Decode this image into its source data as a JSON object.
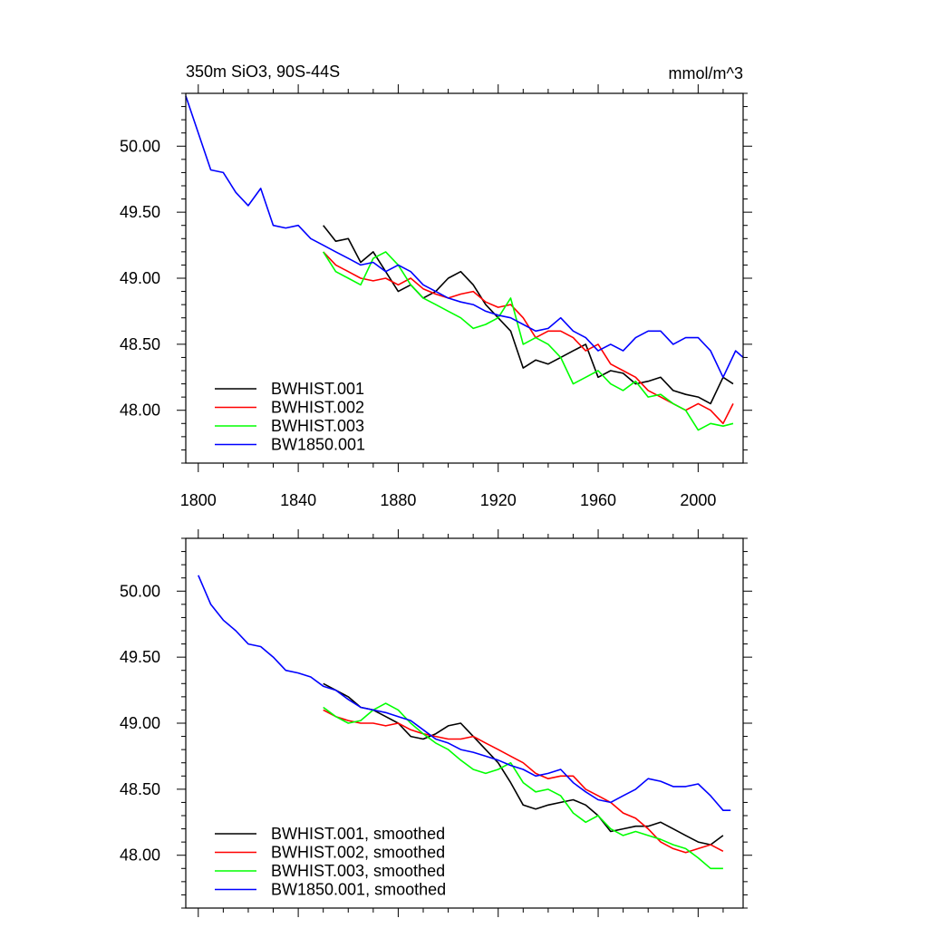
{
  "chart_data": [
    {
      "type": "line",
      "title": "350m SiO3, 90S-44S",
      "units": "mmol/m^3",
      "xlim": [
        1795,
        2018
      ],
      "ylim": [
        47.6,
        50.4
      ],
      "xticks": [
        1800,
        1840,
        1880,
        1920,
        1960,
        2000
      ],
      "yticks": [
        48.0,
        48.5,
        49.0,
        49.5,
        50.0
      ],
      "ytick_labels": [
        "48.00",
        "48.50",
        "49.00",
        "49.50",
        "50.00"
      ],
      "legend_position": "bottom-left",
      "series": [
        {
          "name": "BWHIST.001",
          "color": "#000000",
          "x": [
            1850,
            1855,
            1860,
            1865,
            1870,
            1875,
            1880,
            1885,
            1890,
            1895,
            1900,
            1905,
            1910,
            1915,
            1920,
            1925,
            1930,
            1935,
            1940,
            1945,
            1950,
            1955,
            1960,
            1965,
            1970,
            1975,
            1980,
            1985,
            1990,
            1995,
            2000,
            2005,
            2010,
            2014
          ],
          "y": [
            49.4,
            49.28,
            49.3,
            49.12,
            49.2,
            49.05,
            48.9,
            48.95,
            48.85,
            48.9,
            49.0,
            49.05,
            48.95,
            48.8,
            48.7,
            48.6,
            48.32,
            48.38,
            48.35,
            48.4,
            48.45,
            48.5,
            48.25,
            48.3,
            48.28,
            48.2,
            48.22,
            48.25,
            48.15,
            48.12,
            48.1,
            48.05,
            48.25,
            48.2
          ]
        },
        {
          "name": "BWHIST.002",
          "color": "#ff0000",
          "x": [
            1850,
            1855,
            1860,
            1865,
            1870,
            1875,
            1880,
            1885,
            1890,
            1895,
            1900,
            1905,
            1910,
            1915,
            1920,
            1925,
            1930,
            1935,
            1940,
            1945,
            1950,
            1955,
            1960,
            1965,
            1970,
            1975,
            1980,
            1985,
            1990,
            1995,
            2000,
            2005,
            2010,
            2014
          ],
          "y": [
            49.2,
            49.1,
            49.05,
            49.0,
            48.98,
            49.0,
            48.95,
            49.0,
            48.92,
            48.88,
            48.85,
            48.88,
            48.9,
            48.82,
            48.78,
            48.8,
            48.7,
            48.55,
            48.6,
            48.6,
            48.55,
            48.45,
            48.5,
            48.35,
            48.3,
            48.25,
            48.15,
            48.1,
            48.05,
            48.0,
            48.05,
            48.0,
            47.9,
            48.05
          ]
        },
        {
          "name": "BWHIST.003",
          "color": "#00ff00",
          "x": [
            1850,
            1855,
            1860,
            1865,
            1870,
            1875,
            1880,
            1885,
            1890,
            1895,
            1900,
            1905,
            1910,
            1915,
            1920,
            1925,
            1930,
            1935,
            1940,
            1945,
            1950,
            1955,
            1960,
            1965,
            1970,
            1975,
            1980,
            1985,
            1990,
            1995,
            2000,
            2005,
            2010,
            2014
          ],
          "y": [
            49.2,
            49.05,
            49.0,
            48.95,
            49.15,
            49.2,
            49.1,
            48.95,
            48.85,
            48.8,
            48.75,
            48.7,
            48.62,
            48.65,
            48.7,
            48.85,
            48.5,
            48.55,
            48.5,
            48.4,
            48.2,
            48.25,
            48.3,
            48.2,
            48.15,
            48.22,
            48.1,
            48.12,
            48.05,
            48.0,
            47.85,
            47.9,
            47.88,
            47.9
          ]
        },
        {
          "name": "BW1850.001",
          "color": "#0000ff",
          "x": [
            1795,
            1800,
            1805,
            1810,
            1815,
            1820,
            1825,
            1830,
            1835,
            1840,
            1845,
            1850,
            1855,
            1860,
            1865,
            1870,
            1875,
            1880,
            1885,
            1890,
            1895,
            1900,
            1905,
            1910,
            1915,
            1920,
            1925,
            1930,
            1935,
            1940,
            1945,
            1950,
            1955,
            1960,
            1965,
            1970,
            1975,
            1980,
            1985,
            1990,
            1995,
            2000,
            2005,
            2010,
            2015,
            2018
          ],
          "y": [
            50.38,
            50.1,
            49.82,
            49.8,
            49.65,
            49.55,
            49.68,
            49.4,
            49.38,
            49.4,
            49.3,
            49.25,
            49.2,
            49.15,
            49.1,
            49.12,
            49.05,
            49.1,
            49.05,
            48.95,
            48.9,
            48.85,
            48.82,
            48.8,
            48.75,
            48.72,
            48.7,
            48.65,
            48.6,
            48.62,
            48.7,
            48.6,
            48.55,
            48.45,
            48.5,
            48.45,
            48.55,
            48.6,
            48.6,
            48.5,
            48.55,
            48.55,
            48.45,
            48.25,
            48.45,
            48.4
          ]
        }
      ]
    },
    {
      "type": "line",
      "xlim": [
        1795,
        2018
      ],
      "ylim": [
        47.6,
        50.4
      ],
      "xticks": [
        1800,
        1840,
        1880,
        1920,
        1960,
        2000
      ],
      "yticks": [
        48.0,
        48.5,
        49.0,
        49.5,
        50.0
      ],
      "ytick_labels": [
        "48.00",
        "48.50",
        "49.00",
        "49.50",
        "50.00"
      ],
      "legend_position": "bottom-left",
      "series": [
        {
          "name": "BWHIST.001, smoothed",
          "color": "#000000",
          "x": [
            1850,
            1855,
            1860,
            1865,
            1870,
            1875,
            1880,
            1885,
            1890,
            1895,
            1900,
            1905,
            1910,
            1915,
            1920,
            1925,
            1930,
            1935,
            1940,
            1945,
            1950,
            1955,
            1960,
            1965,
            1970,
            1975,
            1980,
            1985,
            1990,
            1995,
            2000,
            2005,
            2010
          ],
          "y": [
            49.3,
            49.25,
            49.2,
            49.12,
            49.1,
            49.05,
            49.0,
            48.9,
            48.88,
            48.92,
            48.98,
            49.0,
            48.9,
            48.8,
            48.7,
            48.55,
            48.38,
            48.35,
            48.38,
            48.4,
            48.42,
            48.38,
            48.3,
            48.18,
            48.2,
            48.22,
            48.22,
            48.25,
            48.2,
            48.15,
            48.1,
            48.08,
            48.15
          ]
        },
        {
          "name": "BWHIST.002, smoothed",
          "color": "#ff0000",
          "x": [
            1850,
            1855,
            1860,
            1865,
            1870,
            1875,
            1880,
            1885,
            1890,
            1895,
            1900,
            1905,
            1910,
            1915,
            1920,
            1925,
            1930,
            1935,
            1940,
            1945,
            1950,
            1955,
            1960,
            1965,
            1970,
            1975,
            1980,
            1985,
            1990,
            1995,
            2000,
            2005,
            2010
          ],
          "y": [
            49.1,
            49.05,
            49.02,
            49.0,
            49.0,
            48.98,
            49.0,
            48.95,
            48.92,
            48.9,
            48.88,
            48.88,
            48.9,
            48.85,
            48.8,
            48.75,
            48.7,
            48.62,
            48.58,
            48.6,
            48.6,
            48.5,
            48.45,
            48.4,
            48.32,
            48.28,
            48.2,
            48.1,
            48.05,
            48.02,
            48.05,
            48.08,
            48.03
          ]
        },
        {
          "name": "BWHIST.003, smoothed",
          "color": "#00ff00",
          "x": [
            1850,
            1855,
            1860,
            1865,
            1870,
            1875,
            1880,
            1885,
            1890,
            1895,
            1900,
            1905,
            1910,
            1915,
            1920,
            1925,
            1930,
            1935,
            1940,
            1945,
            1950,
            1955,
            1960,
            1965,
            1970,
            1975,
            1980,
            1985,
            1990,
            1995,
            2000,
            2005,
            2010
          ],
          "y": [
            49.12,
            49.05,
            49.0,
            49.02,
            49.1,
            49.15,
            49.1,
            49.0,
            48.92,
            48.85,
            48.8,
            48.72,
            48.65,
            48.62,
            48.65,
            48.7,
            48.55,
            48.48,
            48.5,
            48.45,
            48.32,
            48.25,
            48.3,
            48.2,
            48.15,
            48.18,
            48.15,
            48.12,
            48.08,
            48.05,
            47.98,
            47.9,
            47.9
          ]
        },
        {
          "name": "BW1850.001, smoothed",
          "color": "#0000ff",
          "x": [
            1800,
            1805,
            1810,
            1815,
            1820,
            1825,
            1830,
            1835,
            1840,
            1845,
            1850,
            1855,
            1860,
            1865,
            1870,
            1875,
            1880,
            1885,
            1890,
            1895,
            1900,
            1905,
            1910,
            1915,
            1920,
            1925,
            1930,
            1935,
            1940,
            1945,
            1950,
            1955,
            1960,
            1965,
            1970,
            1975,
            1980,
            1985,
            1990,
            1995,
            2000,
            2005,
            2010,
            2013
          ],
          "y": [
            50.12,
            49.9,
            49.78,
            49.7,
            49.6,
            49.58,
            49.5,
            49.4,
            49.38,
            49.35,
            49.28,
            49.25,
            49.18,
            49.12,
            49.1,
            49.08,
            49.05,
            49.02,
            48.95,
            48.88,
            48.85,
            48.8,
            48.78,
            48.75,
            48.72,
            48.68,
            48.65,
            48.6,
            48.62,
            48.65,
            48.55,
            48.48,
            48.42,
            48.4,
            48.45,
            48.5,
            48.58,
            48.56,
            48.52,
            48.52,
            48.54,
            48.45,
            48.34,
            48.34
          ]
        }
      ]
    }
  ]
}
